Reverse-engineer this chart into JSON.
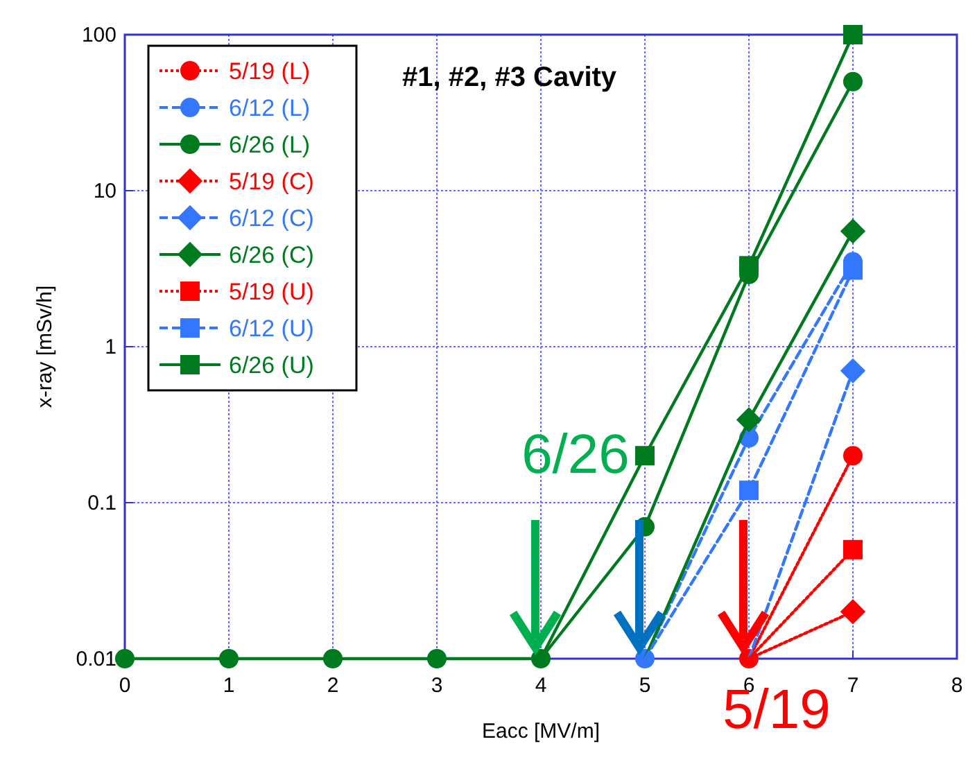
{
  "chart_data": {
    "type": "line",
    "title": "#1, #2, #3 Cavity",
    "xlabel": "Eacc  [MV/m]",
    "ylabel": "x-ray  [mSv/h]",
    "x": [
      0,
      1,
      2,
      3,
      4,
      5,
      6,
      7
    ],
    "log": "y",
    "xlim": [
      0,
      8
    ],
    "xticks": [
      0,
      1,
      2,
      3,
      4,
      5,
      6,
      7,
      8
    ],
    "ylim": [
      0.01,
      100
    ],
    "yticks": [
      0.01,
      0.1,
      1,
      10,
      100
    ],
    "grid": true,
    "legend": "top left",
    "series": [
      {
        "name": "5/19 (L)",
        "color": "#ff0000",
        "marker": "circle",
        "line_style": "dotted",
        "values": [
          null,
          null,
          null,
          null,
          null,
          null,
          0.01,
          0.2
        ]
      },
      {
        "name": "6/12 (L)",
        "color": "#3377ff",
        "marker": "circle",
        "line_style": "dashed",
        "values": [
          null,
          null,
          null,
          null,
          null,
          0.01,
          0.26,
          3.5
        ]
      },
      {
        "name": "6/26 (L)",
        "color": "#007a1e",
        "marker": "circle",
        "line_style": "solid",
        "values": [
          0.01,
          0.01,
          0.01,
          0.01,
          0.01,
          0.07,
          2.9,
          50
        ]
      },
      {
        "name": "5/19 (C)",
        "color": "#ff0000",
        "marker": "diamond",
        "line_style": "dotted",
        "values": [
          null,
          null,
          null,
          null,
          null,
          null,
          0.01,
          0.02
        ]
      },
      {
        "name": "6/12 (C)",
        "color": "#3377ff",
        "marker": "diamond",
        "line_style": "dashed",
        "values": [
          null,
          null,
          null,
          null,
          null,
          null,
          0.01,
          0.7
        ]
      },
      {
        "name": "6/26 (C)",
        "color": "#007a1e",
        "marker": "diamond",
        "line_style": "solid",
        "values": [
          null,
          null,
          null,
          null,
          null,
          0.01,
          0.34,
          5.5
        ]
      },
      {
        "name": "5/19 (U)",
        "color": "#ff0000",
        "marker": "square",
        "line_style": "dotted",
        "values": [
          null,
          null,
          null,
          null,
          null,
          null,
          0.01,
          0.05
        ]
      },
      {
        "name": "6/12 (U)",
        "color": "#3377ff",
        "marker": "square",
        "line_style": "dashed",
        "values": [
          null,
          null,
          null,
          null,
          null,
          0.01,
          0.12,
          3.1
        ]
      },
      {
        "name": "6/26 (U)",
        "color": "#007a1e",
        "marker": "square",
        "line_style": "solid",
        "values": [
          null,
          null,
          null,
          null,
          0.01,
          0.2,
          3.3,
          100
        ]
      }
    ],
    "annotations": [
      "6/26",
      {
        "text": "5/19",
        "x": 6,
        "y": 0.01
      }
    ]
  }
}
